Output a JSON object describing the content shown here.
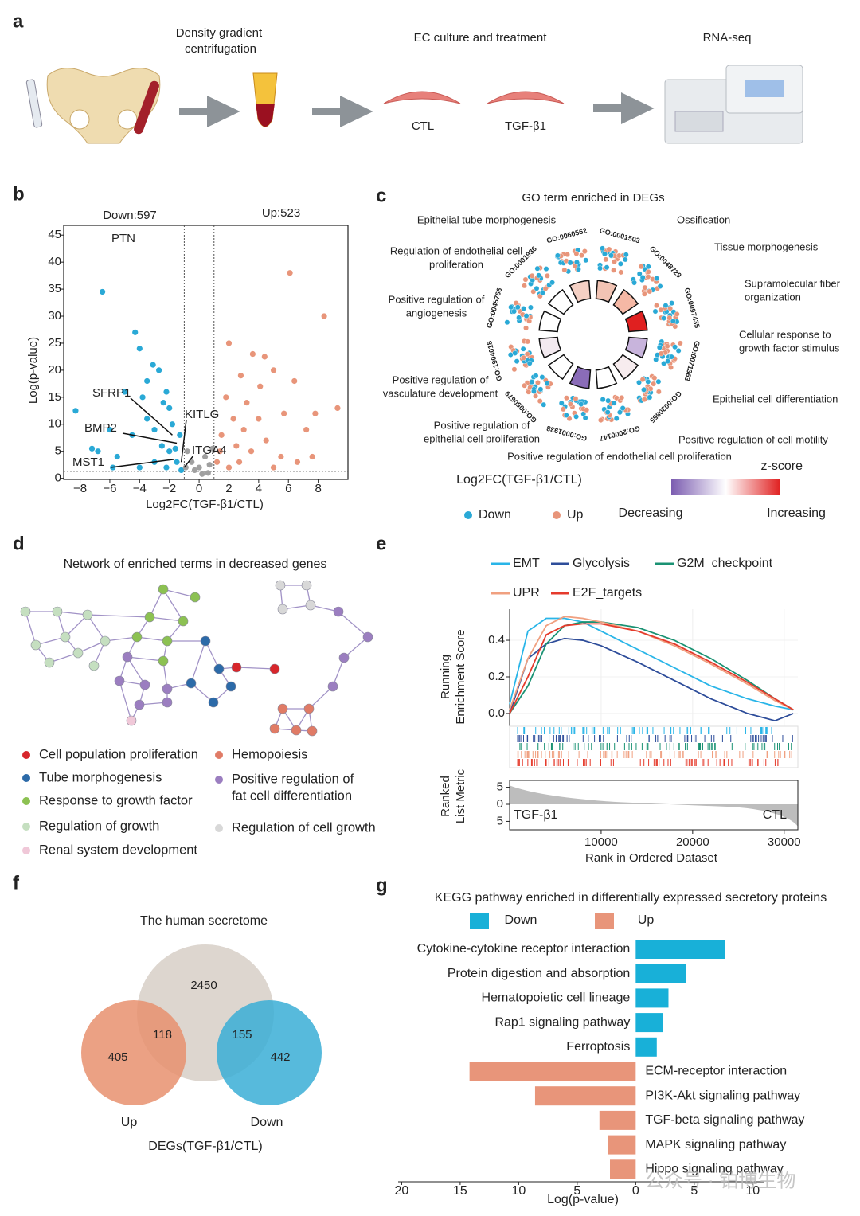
{
  "panel_labels": [
    "a",
    "b",
    "c",
    "d",
    "e",
    "f",
    "g"
  ],
  "workflow": {
    "step1": [
      "Density gradient",
      "centrifugation"
    ],
    "step2": "EC culture and treatment",
    "step3": "RNA-seq",
    "conditions": [
      "CTL",
      "TGF-β1"
    ]
  },
  "chart_data": [
    {
      "type": "scatter",
      "title_left": "Down:597",
      "title_right": "Up:523",
      "xlabel": "Log2FC(TGF-β1/CTL)",
      "ylabel": "Log(p-value)",
      "xlim": [
        -9.1,
        10
      ],
      "ylim": [
        -0.2,
        46.8
      ],
      "xticks": [
        {
          "value": -8,
          "label": "−8"
        },
        {
          "value": -6,
          "label": "−6"
        },
        {
          "value": -4,
          "label": "−4"
        },
        {
          "value": -2,
          "label": "−2"
        },
        0,
        2,
        4,
        6,
        8
      ],
      "yticks": [
        0,
        5,
        10,
        15,
        20,
        25,
        30,
        35,
        40,
        45
      ],
      "thresholds": {
        "x": [
          -1,
          1
        ],
        "y": 1.3
      },
      "series": [
        {
          "color": "#2aa9d6",
          "x": [
            -6.5,
            -8.3,
            -4.3,
            -4.0,
            -3.1,
            -2.7,
            -2.2,
            -2.4,
            -3.8,
            -5,
            -6,
            -7.2,
            -6.8,
            -5.5,
            -4.5,
            -3.5,
            -3,
            -2.5,
            -2,
            -1.8,
            -1.5,
            -1.3,
            -4,
            -3,
            -2.2,
            -1.2,
            -5.8,
            -3.5,
            -2,
            -1.6
          ],
          "y": [
            34.5,
            12.5,
            27,
            24,
            21,
            20,
            16,
            14,
            15,
            16,
            9,
            5.5,
            5,
            4,
            8,
            11,
            9,
            6,
            5,
            10,
            3,
            8,
            2,
            3,
            2,
            1.5,
            2,
            18,
            13,
            5.5
          ]
        },
        {
          "color": "#e8957a",
          "x": [
            6.1,
            8.4,
            9.3,
            2,
            3.6,
            4.4,
            5,
            2.8,
            4.1,
            6.4,
            5.7,
            7.2,
            7.8,
            3.2,
            2.3,
            1.5,
            2.5,
            3.5,
            4.5,
            5.5,
            1.2,
            2,
            6.6,
            7.6,
            1.8,
            3,
            4,
            1.4,
            2.7,
            5
          ],
          "y": [
            38,
            30,
            13,
            25,
            23,
            22.5,
            20,
            19,
            17,
            18,
            12,
            9,
            12,
            14,
            11,
            8,
            6,
            5,
            7,
            4,
            3,
            2,
            3,
            4,
            15,
            9,
            11,
            5,
            3,
            2
          ]
        },
        {
          "color": "#a0a0a0",
          "x": [
            -0.8,
            -0.5,
            -0.3,
            0,
            0.4,
            0.7,
            0.9,
            -0.9,
            0.2,
            0.6
          ],
          "y": [
            5,
            3,
            1.5,
            2,
            4,
            2.5,
            5.5,
            2,
            0.8,
            1
          ]
        }
      ],
      "annotations": [
        {
          "text": "PTN",
          "x": -3.7,
          "y": 44.5
        },
        {
          "text": "SFRP1",
          "x": -1.8,
          "y": 8
        },
        {
          "text": "BMP2",
          "x": -1.5,
          "y": 6.5
        },
        {
          "text": "KITLG",
          "x": -1.2,
          "y": 3
        },
        {
          "text": "MST1",
          "x": -1.7,
          "y": 3.5
        },
        {
          "text": "ITGA4",
          "x": -1.0,
          "y": 2
        }
      ]
    },
    {
      "type": "line",
      "legend": "top",
      "ylabel": [
        "Running",
        "Enrichment Score"
      ],
      "ylabel2": [
        "Ranked",
        "List Metric"
      ],
      "xlabel": "Rank in Ordered Dataset",
      "xlim": [
        0,
        31500
      ],
      "ylim": [
        -0.07,
        0.57
      ],
      "xticks": [
        10000,
        20000,
        30000
      ],
      "yticks": [
        {
          "value": 0,
          "label": "0.0"
        },
        0.2,
        0.4
      ],
      "grid": true,
      "metric_lim": [
        -7,
        7
      ],
      "metric_ticks": [
        5,
        0,
        {
          "value": -5,
          "label": "5"
        }
      ],
      "metric_labels": [
        "TGF-β1",
        "CTL"
      ],
      "x": [
        0,
        2000,
        4000,
        6000,
        8000,
        10000,
        14000,
        18000,
        22000,
        26000,
        29000,
        31000
      ],
      "series": [
        {
          "name": "EMT",
          "color": "#29b5e8",
          "values": [
            0.05,
            0.45,
            0.52,
            0.52,
            0.5,
            0.45,
            0.35,
            0.25,
            0.15,
            0.08,
            0.04,
            0.02
          ]
        },
        {
          "name": "Glycolysis",
          "color": "#2e4d9a",
          "values": [
            0,
            0.3,
            0.38,
            0.41,
            0.4,
            0.37,
            0.28,
            0.18,
            0.08,
            0,
            -0.04,
            0
          ]
        },
        {
          "name": "G2M_checkpoint",
          "color": "#1a9273",
          "values": [
            0,
            0.15,
            0.38,
            0.48,
            0.5,
            0.5,
            0.47,
            0.4,
            0.3,
            0.18,
            0.08,
            0.02
          ]
        },
        {
          "name": "UPR",
          "color": "#f0a080",
          "values": [
            0.02,
            0.3,
            0.48,
            0.53,
            0.52,
            0.5,
            0.45,
            0.37,
            0.27,
            0.16,
            0.07,
            0.02
          ]
        },
        {
          "name": "E2F_targets",
          "color": "#e53b2c",
          "values": [
            0,
            0.2,
            0.43,
            0.48,
            0.49,
            0.49,
            0.45,
            0.38,
            0.28,
            0.17,
            0.08,
            0.02
          ]
        }
      ]
    },
    {
      "type": "bar",
      "orientation": "horizontal",
      "title": "KEGG pathway enriched in differentially expressed  secretory proteins",
      "xlabel": "Log(p-value)",
      "legend": "top",
      "xlim": [
        -20.3,
        11
      ],
      "xticks": [
        {
          "value": -20,
          "label": "20"
        },
        {
          "value": -15,
          "label": "15"
        },
        {
          "value": -10,
          "label": "10"
        },
        {
          "value": -5,
          "label": "5"
        },
        0,
        5,
        10
      ],
      "categories": [
        "Cytokine-cytokine receptor interaction",
        "Protein digestion and absorption",
        "Hematopoietic cell lineage",
        "Rap1 signaling pathway",
        "Ferroptosis",
        "ECM-receptor interaction",
        "PI3K-Akt signaling pathway",
        "TGF-beta signaling pathway",
        "MAPK signaling pathway",
        "Hippo signaling pathway"
      ],
      "series": [
        {
          "name": "Down",
          "color": "#18b0d8",
          "values": [
            7.6,
            4.3,
            2.8,
            2.3,
            1.8,
            null,
            null,
            null,
            null,
            null
          ]
        },
        {
          "name": "Up",
          "color": "#e8957a",
          "values": [
            null,
            null,
            null,
            null,
            null,
            -14.2,
            -8.6,
            -3.1,
            -2.4,
            -2.2
          ]
        }
      ]
    }
  ],
  "go": {
    "title": "GO term enriched in DEGs",
    "xlabel": "Log2FC(TGF-β1/CTL)",
    "legend": [
      "Down",
      "Up"
    ],
    "legend_colors": [
      "#2aa9d6",
      "#e8957a"
    ],
    "zscore_title": "z-score",
    "zscore_labels": [
      "Decreasing",
      "Increasing"
    ],
    "zscore_colors": [
      "#7b5cb0",
      "#ffffff",
      "#e02020"
    ],
    "terms": [
      {
        "name": [
          "Ossification"
        ],
        "id": "GO:0001503",
        "color": "#f2c4b4"
      },
      {
        "name": [
          "Tissue morphogenesis"
        ],
        "id": "GO:0048729",
        "color": "#f5b8a5"
      },
      {
        "name": [
          "Supramolecular fiber",
          "organization"
        ],
        "id": "GO:0097435",
        "color": "#e02020"
      },
      {
        "name": [
          "Cellular response to",
          "growth factor stimulus"
        ],
        "id": "GO:0071363",
        "color": "#c8b4dc"
      },
      {
        "name": [
          "Epithelial cell differentiation"
        ],
        "id": "GO:0030855",
        "color": "#f7ecee"
      },
      {
        "name": [
          "Positive regulation of cell motility"
        ],
        "id": "GO:2000147",
        "color": "#ffffff"
      },
      {
        "name": [
          "Positive regulation of endothelial cell proliferation"
        ],
        "id": "GO:0001938",
        "color": "#8a6cb8"
      },
      {
        "name": [
          "Positive regulation of",
          "epithelial cell proliferation"
        ],
        "id": "GO:0050679",
        "color": "#ffffff"
      },
      {
        "name": [
          "Positive regulation of",
          "vasculature development"
        ],
        "id": "GO:1904018",
        "color": "#f3eaf0"
      },
      {
        "name": [
          "Positive regulation of",
          "angiogenesis"
        ],
        "id": "GO:0045766",
        "color": "#ffffff"
      },
      {
        "name": [
          "Regulation of endothelial cell",
          "proliferation"
        ],
        "id": "GO:0001936",
        "color": "#ffffff"
      },
      {
        "name": [
          "Epithelial tube morphogenesis"
        ],
        "id": "GO:0060562",
        "color": "#f4d0c4"
      }
    ]
  },
  "network": {
    "title": "Network of enriched terms in decreased genes",
    "legend": [
      {
        "name": [
          "Cell population proliferation"
        ],
        "color": "#d7262b"
      },
      {
        "name": [
          "Tube morphogenesis"
        ],
        "color": "#2c6aa8"
      },
      {
        "name": [
          "Response to growth factor"
        ],
        "color": "#8cc152"
      },
      {
        "name": [
          "Regulation of growth"
        ],
        "color": "#c5dfc0"
      },
      {
        "name": [
          "Renal system development"
        ],
        "color": "#f0c8d8"
      },
      {
        "name": [
          "Hemopoiesis"
        ],
        "color": "#e07b66"
      },
      {
        "name": [
          "Positive regulation of",
          "fat cell differentiation"
        ],
        "color": "#9b7ec0"
      },
      {
        "name": [
          "Regulation of cell growth"
        ],
        "color": "#d8d8d8"
      }
    ]
  },
  "venn": {
    "title": "The human secretome",
    "counts": {
      "secretome": "2450",
      "up_secretome": "118",
      "up": "405",
      "down_secretome": "155",
      "down": "442"
    },
    "labels": [
      "Up",
      "Down"
    ],
    "caption": "DEGs(TGF-β1/CTL)",
    "colors": [
      "#d9d2ca",
      "#e8906e",
      "#3aaed6"
    ]
  },
  "watermark": "公众号 · 铂博生物"
}
